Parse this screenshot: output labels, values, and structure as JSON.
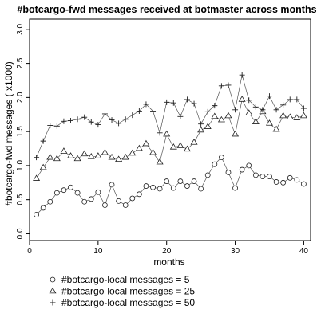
{
  "chart_data": {
    "type": "line",
    "title": "#botcargo-fwd messages received at botmaster across months",
    "xlabel": "months",
    "ylabel": "#botcargo-fwd messages ( x1000)",
    "xlim": [
      0,
      41
    ],
    "ylim": [
      -0.1,
      3.15
    ],
    "xticks": [
      0,
      10,
      20,
      30,
      40
    ],
    "yticks": [
      0.0,
      0.5,
      1.0,
      1.5,
      2.0,
      2.5,
      3.0
    ],
    "ytick_labels": [
      "0.0",
      "0.5",
      "1.0",
      "1.5",
      "2.0",
      "2.5",
      "3.0"
    ],
    "grid": false,
    "legend_position": "bottom",
    "x": [
      1,
      2,
      3,
      4,
      5,
      6,
      7,
      8,
      9,
      10,
      11,
      12,
      13,
      14,
      15,
      16,
      17,
      18,
      19,
      20,
      21,
      22,
      23,
      24,
      25,
      26,
      27,
      28,
      29,
      30,
      31,
      32,
      33,
      34,
      35,
      36,
      37,
      38,
      39,
      40
    ],
    "series": [
      {
        "name": "#botcargo-local messages = 5",
        "marker": "circle",
        "values": [
          0.28,
          0.38,
          0.47,
          0.6,
          0.64,
          0.68,
          0.6,
          0.47,
          0.51,
          0.61,
          0.42,
          0.72,
          0.48,
          0.42,
          0.52,
          0.58,
          0.7,
          0.68,
          0.66,
          0.77,
          0.67,
          0.77,
          0.7,
          0.77,
          0.66,
          0.86,
          1.02,
          1.12,
          0.9,
          0.67,
          0.94,
          1.0,
          0.86,
          0.84,
          0.84,
          0.76,
          0.75,
          0.82,
          0.79,
          0.73
        ]
      },
      {
        "name": "#botcargo-local messages = 25",
        "marker": "triangle",
        "values": [
          0.81,
          0.97,
          1.12,
          1.1,
          1.21,
          1.14,
          1.1,
          1.17,
          1.13,
          1.14,
          1.19,
          1.12,
          1.09,
          1.12,
          1.18,
          1.25,
          1.32,
          1.19,
          1.05,
          1.46,
          1.27,
          1.29,
          1.24,
          1.34,
          1.52,
          1.57,
          1.72,
          1.67,
          1.73,
          1.46,
          1.97,
          1.77,
          1.64,
          1.79,
          1.62,
          1.53,
          1.73,
          1.71,
          1.7,
          1.73
        ]
      },
      {
        "name": "#botcargo-local messages = 50",
        "marker": "plus",
        "values": [
          1.12,
          1.36,
          1.59,
          1.58,
          1.65,
          1.66,
          1.68,
          1.71,
          1.64,
          1.6,
          1.76,
          1.67,
          1.62,
          1.68,
          1.74,
          1.8,
          1.9,
          1.8,
          1.48,
          1.93,
          1.92,
          1.72,
          1.97,
          1.91,
          1.61,
          1.79,
          1.88,
          2.17,
          2.18,
          1.82,
          2.33,
          1.96,
          1.86,
          1.82,
          2.02,
          1.82,
          1.89,
          1.97,
          1.97,
          1.84
        ]
      }
    ]
  }
}
